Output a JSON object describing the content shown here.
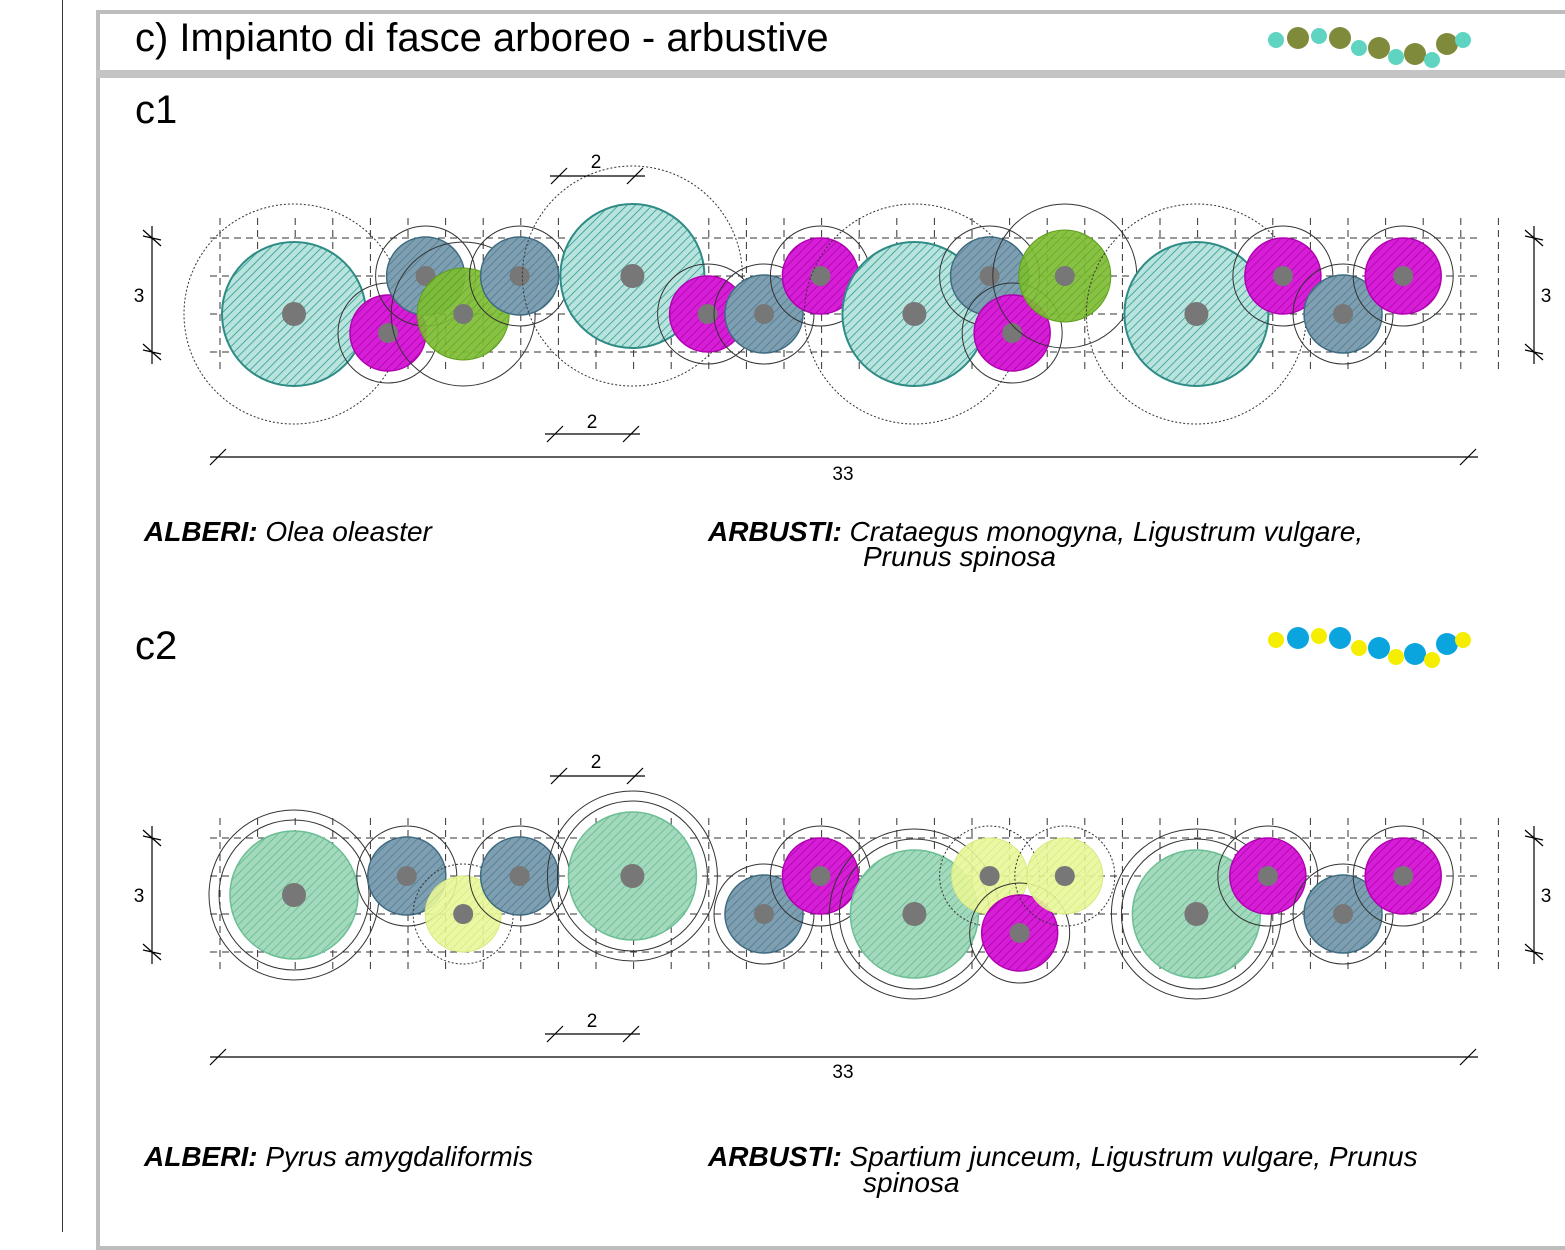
{
  "title": "c) Impianto di fasce arboreo - arbustive",
  "colors": {
    "olea": "#8ccfc4",
    "olea_stroke": "#2e8b85",
    "shrub_blue": "#6f95a8",
    "crataegus": "#d400d4",
    "ligustrum_green": "#77b52a",
    "pyrus": "#8fd1ad",
    "spartium": "#e3f58a",
    "center_dot": "#777777",
    "swatch_c1_small": "#5fd4c0",
    "swatch_c1_big": "#7f8a3a",
    "swatch_c2_small": "#f5ee00",
    "swatch_c2_big": "#0aa5de"
  },
  "sections": [
    {
      "id": "c1",
      "label": "c1",
      "dim_length": "33",
      "dim_width": "3",
      "dim_spacing_top": "2",
      "dim_spacing_bottom": "2",
      "trees_label": "ALBERI:",
      "trees_species": "Olea oleaster",
      "shrubs_label": "ARBUSTI:",
      "shrubs_line1": "Crataegus monogyna,  Ligustrum vulgare,",
      "shrubs_line2": "Prunus spinosa",
      "plants": [
        {
          "type": "tree",
          "x": 0.0,
          "y": 1.0
        },
        {
          "type": "shrub_magenta",
          "x": 2.5,
          "y": 1.5
        },
        {
          "type": "shrub_blue",
          "x": 3.5,
          "y": 0.0
        },
        {
          "type": "shrub_green",
          "x": 4.5,
          "y": 1.0
        },
        {
          "type": "shrub_blue",
          "x": 6.0,
          "y": 0.0
        },
        {
          "type": "tree",
          "x": 9.0,
          "y": 0.0
        },
        {
          "type": "shrub_magenta",
          "x": 11.0,
          "y": 1.0
        },
        {
          "type": "shrub_blue",
          "x": 12.5,
          "y": 1.0
        },
        {
          "type": "shrub_magenta",
          "x": 14.0,
          "y": 0.0
        },
        {
          "type": "tree",
          "x": 16.5,
          "y": 1.0
        },
        {
          "type": "shrub_blue",
          "x": 18.5,
          "y": 0.0
        },
        {
          "type": "shrub_magenta",
          "x": 19.1,
          "y": 1.5
        },
        {
          "type": "shrub_green",
          "x": 20.5,
          "y": 0.0
        },
        {
          "type": "tree",
          "x": 24.0,
          "y": 1.0
        },
        {
          "type": "shrub_magenta",
          "x": 26.3,
          "y": 0.0
        },
        {
          "type": "shrub_blue",
          "x": 27.9,
          "y": 1.0
        },
        {
          "type": "shrub_magenta",
          "x": 29.5,
          "y": 0.0
        }
      ]
    },
    {
      "id": "c2",
      "label": "c2",
      "dim_length": "33",
      "dim_width": "3",
      "dim_spacing_top": "2",
      "dim_spacing_bottom": "2",
      "trees_label": "ALBERI:",
      "trees_species": "Pyrus amygdaliformis",
      "shrubs_label": "ARBUSTI:",
      "shrubs_line1": "Spartium junceum,  Ligustrum vulgare, Prunus",
      "shrubs_line2": "spinosa",
      "plants": [
        {
          "type": "tree",
          "x": 0.0,
          "y": 0.5
        },
        {
          "type": "shrub_blue",
          "x": 3.0,
          "y": 0.0
        },
        {
          "type": "shrub_yellow",
          "x": 4.5,
          "y": 1.0
        },
        {
          "type": "shrub_blue",
          "x": 6.0,
          "y": 0.0
        },
        {
          "type": "tree",
          "x": 9.0,
          "y": 0.0
        },
        {
          "type": "shrub_blue",
          "x": 12.5,
          "y": 1.0
        },
        {
          "type": "shrub_magenta",
          "x": 14.0,
          "y": 0.0
        },
        {
          "type": "tree",
          "x": 16.5,
          "y": 1.0
        },
        {
          "type": "shrub_yellow",
          "x": 18.5,
          "y": 0.0
        },
        {
          "type": "shrub_magenta",
          "x": 19.3,
          "y": 1.5
        },
        {
          "type": "shrub_yellow",
          "x": 20.5,
          "y": 0.0
        },
        {
          "type": "tree",
          "x": 24.0,
          "y": 1.0
        },
        {
          "type": "shrub_magenta",
          "x": 25.9,
          "y": 0.0
        },
        {
          "type": "shrub_blue",
          "x": 27.9,
          "y": 1.0
        },
        {
          "type": "shrub_magenta",
          "x": 29.5,
          "y": 0.0
        }
      ]
    }
  ]
}
